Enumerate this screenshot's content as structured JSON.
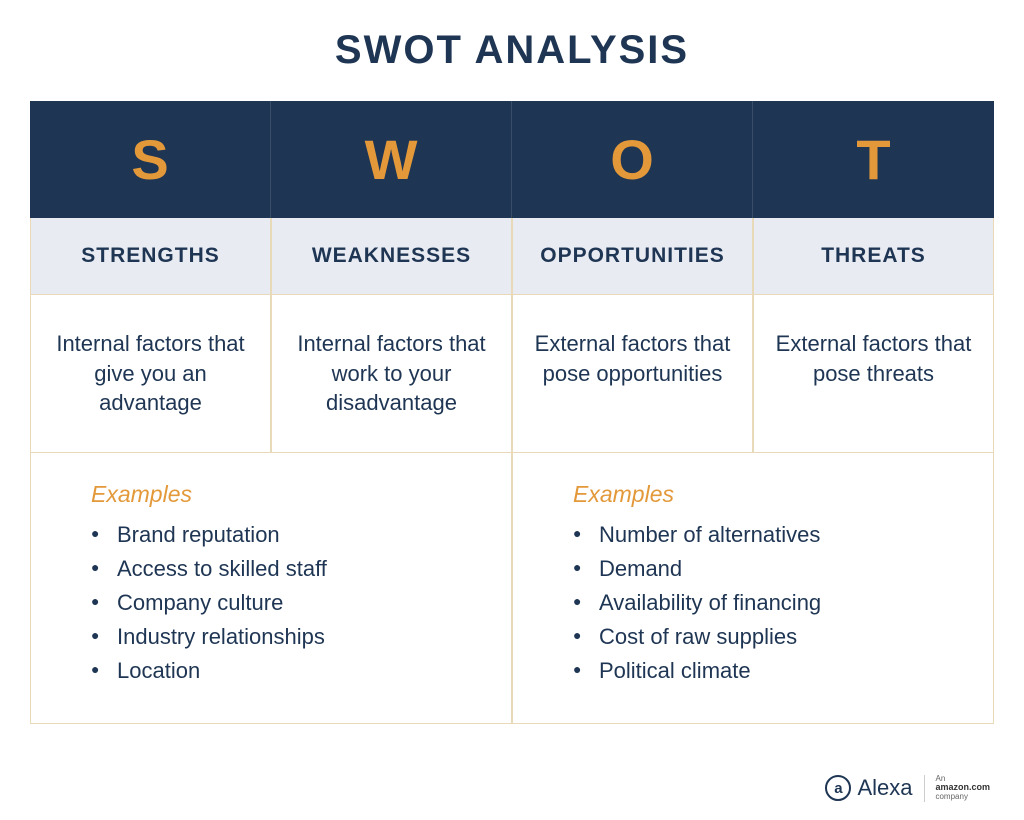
{
  "title": "SWOT ANALYSIS",
  "colors": {
    "header_bg": "#1e3553",
    "header_text": "#e3993a",
    "label_bg": "#e8ebf2",
    "text_primary": "#1e3553",
    "accent": "#e3993a",
    "border": "#e8d9b8",
    "page_bg": "#ffffff"
  },
  "typography": {
    "title_size": 40,
    "letter_size": 56,
    "label_size": 21,
    "desc_size": 22,
    "example_size": 22
  },
  "columns": [
    {
      "letter": "S",
      "label": "STRENGTHS",
      "description": "Internal factors that give you an advantage"
    },
    {
      "letter": "W",
      "label": "WEAKNESSES",
      "description": "Internal factors that work to your disadvantage"
    },
    {
      "letter": "O",
      "label": "OPPORTUNITIES",
      "description": "External factors that pose opportunities"
    },
    {
      "letter": "T",
      "label": "THREATS",
      "description": "External factors that pose threats"
    }
  ],
  "examples": {
    "heading": "Examples",
    "left": [
      "Brand reputation",
      "Access to skilled staff",
      "Company culture",
      "Industry relationships",
      "Location"
    ],
    "right": [
      "Number of alternatives",
      "Demand",
      "Availability of financing",
      "Cost of raw supplies",
      "Political climate"
    ]
  },
  "footer": {
    "brand": "Alexa",
    "icon_letter": "a",
    "sub_line1": "An",
    "sub_line2": "amazon.com",
    "sub_line3": "company"
  }
}
